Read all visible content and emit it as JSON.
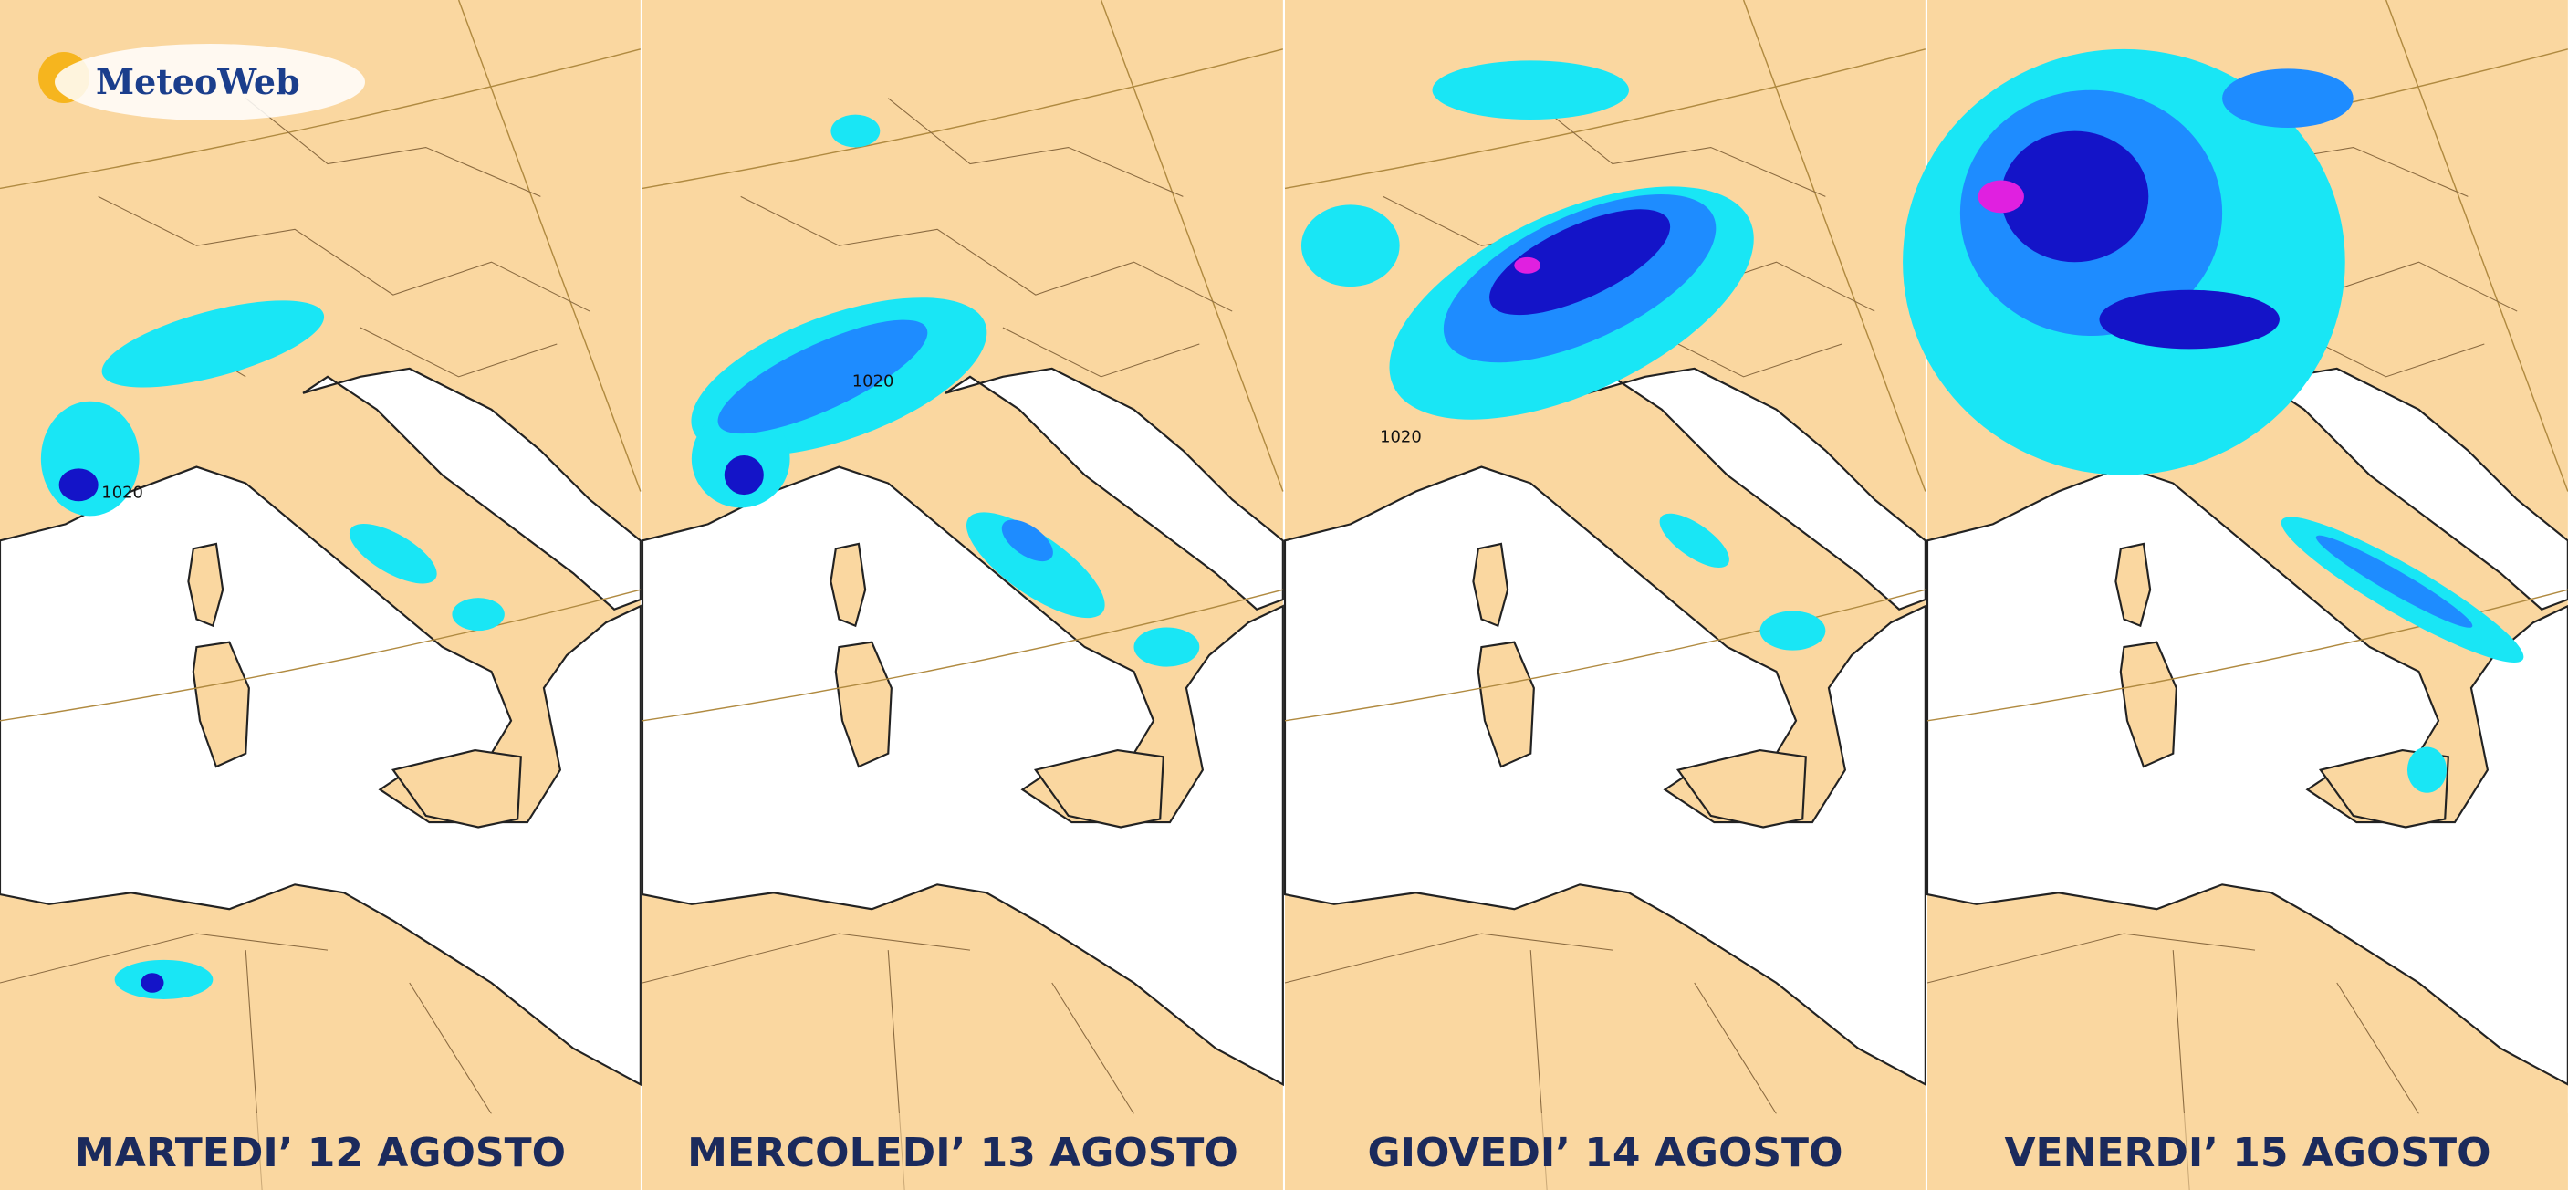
{
  "logo": {
    "text": "MeteoWeb"
  },
  "panels": [
    {
      "label": "MARTEDI’ 12 AGOSTO",
      "isobar_label": "1020"
    },
    {
      "label": "MERCOLEDI’ 13 AGOSTO",
      "isobar_label": "1020"
    },
    {
      "label": "GIOVEDI’ 14 AGOSTO",
      "isobar_label": "1020"
    },
    {
      "label": "VENERDI’ 15 AGOSTO"
    }
  ]
}
